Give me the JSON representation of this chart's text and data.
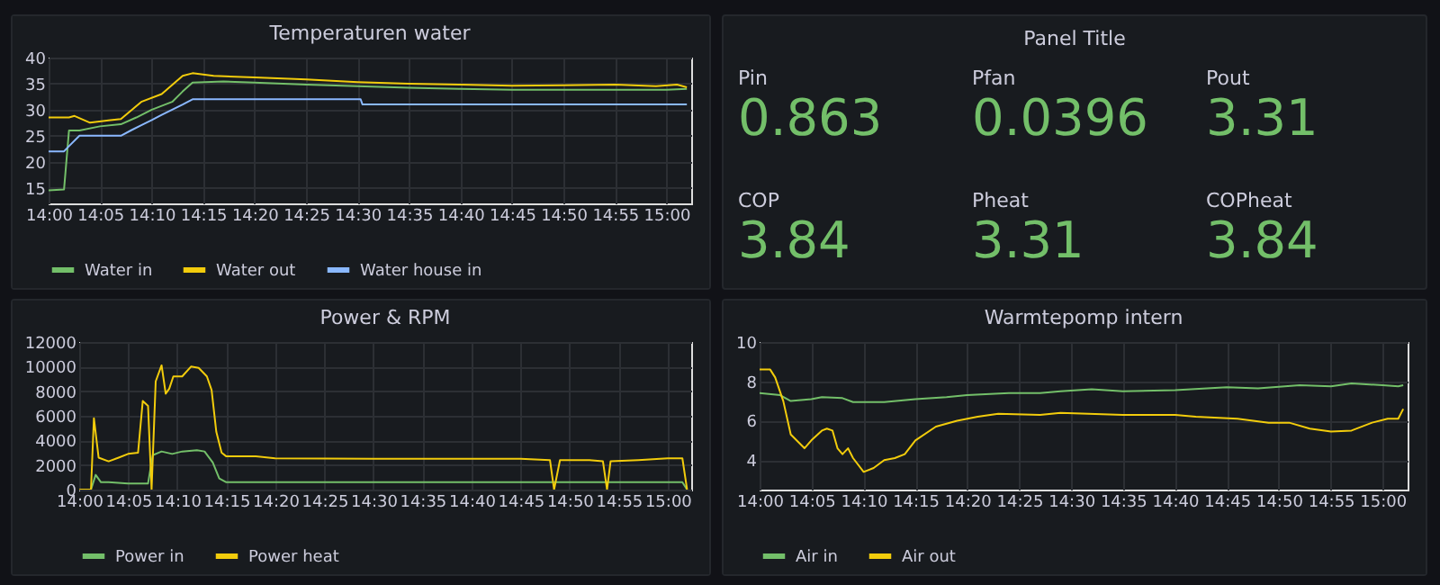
{
  "chart_data": [
    {
      "type": "line",
      "title": "Temperaturen water",
      "xlim": [
        14,
        15.04
      ],
      "ylim": [
        12,
        40
      ],
      "yticks": [
        15,
        20,
        25,
        30,
        35,
        40
      ],
      "xticks": [
        {
          "value": 14,
          "label": "14:00"
        },
        {
          "value": 14.0833,
          "label": "14:05"
        },
        {
          "value": 14.1667,
          "label": "14:10"
        },
        {
          "value": 14.25,
          "label": "14:15"
        },
        {
          "value": 14.3333,
          "label": "14:20"
        },
        {
          "value": 14.4167,
          "label": "14:25"
        },
        {
          "value": 14.5,
          "label": "14:30"
        },
        {
          "value": 14.5833,
          "label": "14:35"
        },
        {
          "value": 14.6667,
          "label": "14:40"
        },
        {
          "value": 14.75,
          "label": "14:45"
        },
        {
          "value": 14.8333,
          "label": "14:50"
        },
        {
          "value": 14.9167,
          "label": "14:55"
        },
        {
          "value": 15,
          "label": "15:00"
        }
      ],
      "grid": true,
      "legend": "bottom",
      "series": [
        {
          "name": "Water in",
          "color": "#73bf69",
          "x": [
            14,
            14.025,
            14.033,
            14.05,
            14.083,
            14.117,
            14.142,
            14.167,
            14.2,
            14.217,
            14.233,
            14.283,
            14.333,
            14.417,
            14.5,
            14.583,
            14.667,
            14.75,
            14.833,
            14.917,
            15,
            15.033
          ],
          "values": [
            14.5,
            14.7,
            26,
            26,
            26.8,
            27.2,
            28.5,
            30,
            31.5,
            33.5,
            35.2,
            35.4,
            35.2,
            34.8,
            34.5,
            34.2,
            34,
            33.8,
            33.8,
            33.8,
            33.8,
            34
          ]
        },
        {
          "name": "Water out",
          "color": "#f2cc0c",
          "x": [
            14,
            14.033,
            14.042,
            14.067,
            14.1,
            14.117,
            14.15,
            14.183,
            14.217,
            14.233,
            14.267,
            14.333,
            14.417,
            14.5,
            14.583,
            14.667,
            14.75,
            14.833,
            14.917,
            14.983,
            15.017,
            15.033
          ],
          "values": [
            28.5,
            28.5,
            28.8,
            27.5,
            28,
            28.2,
            31.5,
            33,
            36.5,
            37,
            36.5,
            36.2,
            35.8,
            35.3,
            35,
            34.8,
            34.6,
            34.7,
            34.8,
            34.5,
            34.8,
            34.3
          ]
        },
        {
          "name": "Water house in",
          "color": "#8ab8ff",
          "x": [
            14,
            14.025,
            14.033,
            14.05,
            14.117,
            14.133,
            14.15,
            14.167,
            14.183,
            14.2,
            14.217,
            14.233,
            14.505,
            14.508,
            15.033
          ],
          "values": [
            22,
            22,
            23,
            25,
            25,
            26,
            27,
            28,
            29,
            30,
            31,
            32,
            32,
            31,
            31
          ]
        }
      ]
    },
    {
      "type": "other",
      "title": "Panel Title",
      "annotations": [
        "Pin",
        "0.863",
        "Pfan",
        "0.0396",
        "Pout",
        "3.31",
        "COP",
        "3.84",
        "Pheat",
        "3.31",
        "COPheat",
        "3.84"
      ]
    },
    {
      "type": "line",
      "title": "Power & RPM",
      "xlim": [
        14,
        15.04
      ],
      "ylim": [
        0,
        12000
      ],
      "yticks": [
        0,
        2000,
        4000,
        6000,
        8000,
        10000,
        12000
      ],
      "xticks": [
        {
          "value": 14,
          "label": "14:00"
        },
        {
          "value": 14.0833,
          "label": "14:05"
        },
        {
          "value": 14.1667,
          "label": "14:10"
        },
        {
          "value": 14.25,
          "label": "14:15"
        },
        {
          "value": 14.3333,
          "label": "14:20"
        },
        {
          "value": 14.4167,
          "label": "14:25"
        },
        {
          "value": 14.5,
          "label": "14:30"
        },
        {
          "value": 14.5833,
          "label": "14:35"
        },
        {
          "value": 14.6667,
          "label": "14:40"
        },
        {
          "value": 14.75,
          "label": "14:45"
        },
        {
          "value": 14.8333,
          "label": "14:50"
        },
        {
          "value": 14.9167,
          "label": "14:55"
        },
        {
          "value": 15,
          "label": "15:00"
        }
      ],
      "grid": true,
      "legend": "bottom",
      "series": [
        {
          "name": "Power in",
          "color": "#73bf69",
          "x": [
            14,
            14.02,
            14.028,
            14.037,
            14.05,
            14.083,
            14.117,
            14.125,
            14.14,
            14.158,
            14.175,
            14.2,
            14.213,
            14.227,
            14.238,
            14.25,
            14.5,
            14.75,
            15,
            15.025,
            15.033
          ],
          "values": [
            0,
            0,
            1200,
            600,
            600,
            500,
            500,
            2800,
            3100,
            2900,
            3100,
            3200,
            3100,
            2200,
            900,
            600,
            600,
            600,
            600,
            600,
            0
          ]
        },
        {
          "name": "Power heat",
          "color": "#f2cc0c",
          "x": [
            14,
            14.02,
            14.025,
            14.033,
            14.05,
            14.067,
            14.083,
            14.1,
            14.108,
            14.117,
            14.123,
            14.13,
            14.14,
            14.147,
            14.153,
            14.16,
            14.175,
            14.19,
            14.203,
            14.217,
            14.225,
            14.233,
            14.242,
            14.25,
            14.3,
            14.333,
            14.5,
            14.75,
            14.8,
            14.807,
            14.817,
            14.867,
            14.89,
            14.897,
            14.903,
            14.95,
            15,
            15.025,
            15.033
          ],
          "values": [
            0,
            0,
            5800,
            2600,
            2300,
            2600,
            2900,
            3000,
            7200,
            6800,
            0,
            8800,
            10100,
            7800,
            8200,
            9200,
            9200,
            10000,
            9900,
            9200,
            8100,
            4700,
            3000,
            2700,
            2700,
            2550,
            2500,
            2500,
            2400,
            0,
            2400,
            2400,
            2300,
            0,
            2300,
            2400,
            2550,
            2550,
            0
          ]
        }
      ]
    },
    {
      "type": "line",
      "title": "Warmtepomp intern",
      "xlim": [
        14,
        15.04
      ],
      "ylim": [
        2.5,
        10
      ],
      "yticks": [
        4,
        6,
        8,
        10
      ],
      "xticks": [
        {
          "value": 14,
          "label": "14:00"
        },
        {
          "value": 14.0833,
          "label": "14:05"
        },
        {
          "value": 14.1667,
          "label": "14:10"
        },
        {
          "value": 14.25,
          "label": "14:15"
        },
        {
          "value": 14.3333,
          "label": "14:20"
        },
        {
          "value": 14.4167,
          "label": "14:25"
        },
        {
          "value": 14.5,
          "label": "14:30"
        },
        {
          "value": 14.5833,
          "label": "14:35"
        },
        {
          "value": 14.6667,
          "label": "14:40"
        },
        {
          "value": 14.75,
          "label": "14:45"
        },
        {
          "value": 14.8333,
          "label": "14:50"
        },
        {
          "value": 14.9167,
          "label": "14:55"
        },
        {
          "value": 15,
          "label": "15:00"
        }
      ],
      "grid": true,
      "legend": "bottom",
      "series": [
        {
          "name": "Air in",
          "color": "#73bf69",
          "x": [
            14,
            14.033,
            14.05,
            14.083,
            14.1,
            14.133,
            14.15,
            14.2,
            14.25,
            14.3,
            14.333,
            14.4,
            14.45,
            14.483,
            14.533,
            14.583,
            14.667,
            14.75,
            14.8,
            14.867,
            14.917,
            14.95,
            15,
            15.025,
            15.033
          ],
          "values": [
            7.4,
            7.3,
            7,
            7.1,
            7.2,
            7.15,
            6.95,
            6.95,
            7.1,
            7.2,
            7.3,
            7.4,
            7.4,
            7.5,
            7.6,
            7.5,
            7.55,
            7.7,
            7.65,
            7.8,
            7.75,
            7.9,
            7.8,
            7.75,
            7.8
          ]
        },
        {
          "name": "Air out",
          "color": "#f2cc0c",
          "x": [
            14,
            14.017,
            14.025,
            14.038,
            14.05,
            14.072,
            14.083,
            14.1,
            14.108,
            14.117,
            14.125,
            14.133,
            14.142,
            14.15,
            14.167,
            14.183,
            14.2,
            14.217,
            14.233,
            14.25,
            14.283,
            14.317,
            14.35,
            14.383,
            14.45,
            14.483,
            14.583,
            14.667,
            14.7,
            14.767,
            14.817,
            14.85,
            14.883,
            14.917,
            14.95,
            14.983,
            15.008,
            15.025,
            15.033
          ],
          "values": [
            8.6,
            8.6,
            8.2,
            7,
            5.3,
            4.6,
            5,
            5.5,
            5.6,
            5.5,
            4.6,
            4.3,
            4.6,
            4.1,
            3.4,
            3.6,
            4,
            4.1,
            4.3,
            5,
            5.7,
            6,
            6.2,
            6.35,
            6.3,
            6.4,
            6.3,
            6.3,
            6.2,
            6.1,
            5.9,
            5.9,
            5.6,
            5.45,
            5.5,
            5.9,
            6.1,
            6.1,
            6.6
          ]
        }
      ]
    }
  ]
}
